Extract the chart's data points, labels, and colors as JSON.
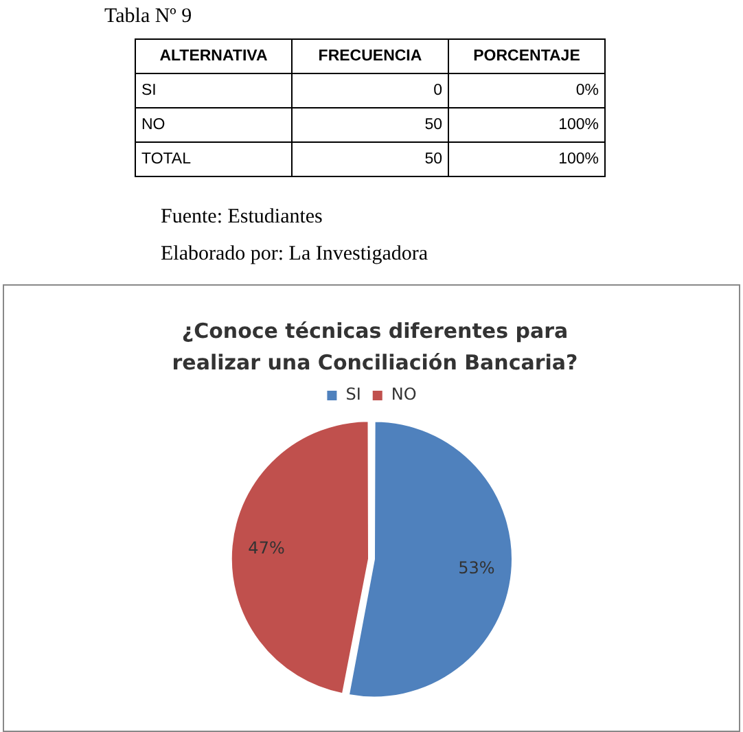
{
  "chart_data": {
    "type": "pie",
    "title": "¿Conoce técnicas diferentes para realizar una Conciliación Bancaria?",
    "categories": [
      "SI",
      "NO"
    ],
    "values": [
      53,
      47
    ],
    "colors": [
      "#4f81bd",
      "#c0504d"
    ],
    "value_labels": [
      "53%",
      "47%"
    ],
    "legend": "top",
    "annotations": [
      "Tabla Nº 9",
      "ALTERNATIVA",
      "FRECUENCIA",
      "PORCENTAJE",
      "SI",
      "0",
      "0%",
      "NO",
      "50",
      "100%",
      "TOTAL",
      "50",
      "100%",
      "Fuente: Estudiantes",
      "Elaborado por: La Investigadora"
    ]
  }
}
